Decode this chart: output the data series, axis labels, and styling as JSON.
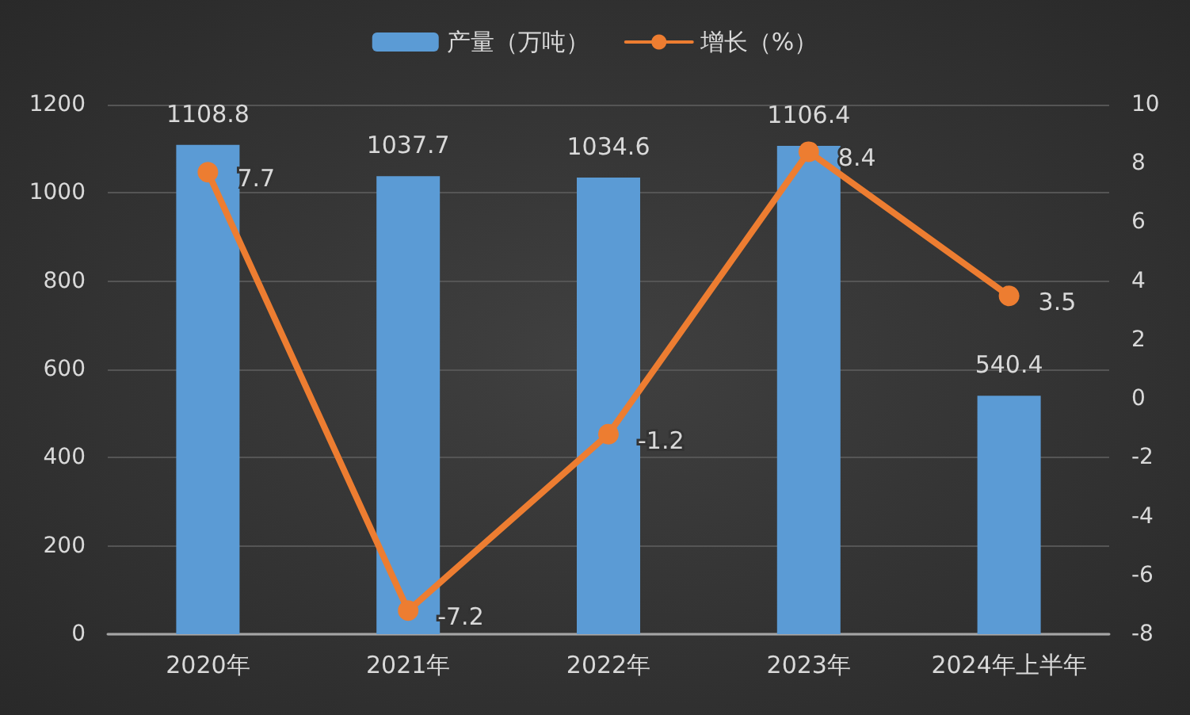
{
  "chart_data": {
    "type": "bar",
    "categories": [
      "2020年",
      "2021年",
      "2022年",
      "2023年",
      "2024年上半年"
    ],
    "series": [
      {
        "name": "产量（万吨）",
        "color": "#5b9bd5",
        "values": [
          1108.8,
          1037.7,
          1034.6,
          1106.4,
          540.4
        ]
      },
      {
        "name": "增长（%）",
        "type": "line",
        "axis": "y2",
        "color": "#ed7d31",
        "values": [
          7.7,
          -7.2,
          -1.2,
          8.4,
          3.5
        ]
      }
    ],
    "ylim": [
      0,
      1200
    ],
    "yticks": [
      0,
      200,
      400,
      600,
      800,
      1000,
      1200
    ],
    "y2lim": [
      -8,
      10
    ],
    "y2ticks": [
      -8,
      -6,
      -4,
      -2,
      0,
      2,
      4,
      6,
      8,
      10
    ],
    "data_labels": true,
    "grid": "y",
    "legend": "top",
    "marker": "circle",
    "line_style": "solid"
  }
}
